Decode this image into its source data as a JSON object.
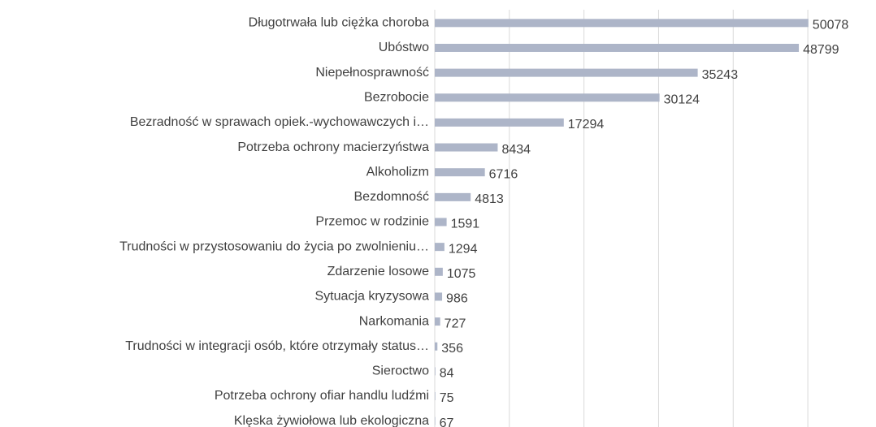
{
  "chart_data": {
    "type": "hbar",
    "categories": [
      "Długotrwała lub ciężka choroba",
      "Ubóstwo",
      "Niepełnosprawność",
      "Bezrobocie",
      "Bezradność w sprawach opiek.-wychowawczych i…",
      "Potrzeba ochrony macierzyństwa",
      "Alkoholizm",
      "Bezdomność",
      "Przemoc w rodzinie",
      "Trudności w przystosowaniu do życia po zwolnieniu…",
      "Zdarzenie losowe",
      "Sytuacja kryzysowa",
      "Narkomania",
      "Trudności w integracji osób, które otrzymały status…",
      "Sieroctwo",
      "Potrzeba ochrony ofiar handlu ludźmi",
      "Klęska żywiołowa lub ekologiczna"
    ],
    "values": [
      50078,
      48799,
      35243,
      30124,
      17294,
      8434,
      6716,
      4813,
      1591,
      1294,
      1075,
      986,
      727,
      356,
      84,
      75,
      67
    ],
    "color": "#adb5c8",
    "xlim": [
      0,
      55000
    ],
    "xticks": [
      0,
      10000,
      20000,
      30000,
      40000,
      50000
    ],
    "grid": true
  }
}
